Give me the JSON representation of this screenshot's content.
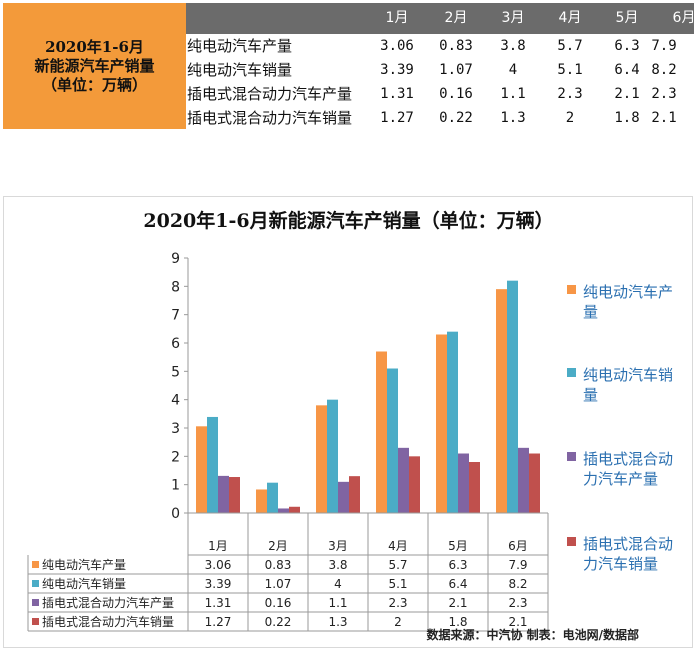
{
  "summary_table": {
    "title_lines": [
      "2020年1-6月",
      "新能源汽车产销量",
      "（单位：万辆）"
    ],
    "months": [
      "1月",
      "2月",
      "3月",
      "4月",
      "5月",
      "6月"
    ],
    "rows": [
      {
        "name": "纯电动汽车产量",
        "values": [
          "3.06",
          "0.83",
          "3.8",
          "5.7",
          "6.3",
          "7.9"
        ]
      },
      {
        "name": "纯电动汽车销量",
        "values": [
          "3.39",
          "1.07",
          "4",
          "5.1",
          "6.4",
          "8.2"
        ]
      },
      {
        "name": "插电式混合动力汽车产量",
        "values": [
          "1.31",
          "0.16",
          "1.1",
          "2.3",
          "2.1",
          "2.3"
        ]
      },
      {
        "name": "插电式混合动力汽车销量",
        "values": [
          "1.27",
          "0.22",
          "1.3",
          "2",
          "1.8",
          "2.1"
        ]
      }
    ],
    "header_color": "#6b6b6b",
    "title_cell_color": "#f39a3a"
  },
  "chart_data": {
    "type": "bar",
    "title": "2020年1-6月新能源汽车产销量（单位：万辆）",
    "categories": [
      "1月",
      "2月",
      "3月",
      "4月",
      "5月",
      "6月"
    ],
    "series": [
      {
        "name": "纯电动汽车产量",
        "color": "#f79646",
        "values": [
          3.06,
          0.83,
          3.8,
          5.7,
          6.3,
          7.9
        ],
        "labels": [
          "3.06",
          "0.83",
          "3.8",
          "5.7",
          "6.3",
          "7.9"
        ]
      },
      {
        "name": "纯电动汽车销量",
        "color": "#4bacc6",
        "values": [
          3.39,
          1.07,
          4,
          5.1,
          6.4,
          8.2
        ],
        "labels": [
          "3.39",
          "1.07",
          "4",
          "5.1",
          "6.4",
          "8.2"
        ]
      },
      {
        "name": "插电式混合动力汽车产量",
        "color": "#8064a2",
        "values": [
          1.31,
          0.16,
          1.1,
          2.3,
          2.1,
          2.3
        ],
        "labels": [
          "1.31",
          "0.16",
          "1.1",
          "2.3",
          "2.1",
          "2.3"
        ]
      },
      {
        "name": "插电式混合动力汽车销量",
        "color": "#c0504d",
        "values": [
          1.27,
          0.22,
          1.3,
          2,
          1.8,
          2.1
        ],
        "labels": [
          "1.27",
          "0.22",
          "1.3",
          "2",
          "1.8",
          "2.1"
        ]
      }
    ],
    "legend_lines": [
      [
        "纯电动汽车产",
        "量"
      ],
      [
        "纯电动汽车销",
        "量"
      ],
      [
        "插电式混合动",
        "力汽车产量"
      ],
      [
        "插电式混合动",
        "力汽车销量"
      ]
    ],
    "y_ticks": [
      "0",
      "1",
      "2",
      "3",
      "4",
      "5",
      "6",
      "7",
      "8",
      "9"
    ],
    "ylim": [
      0,
      9
    ],
    "grid": false,
    "data_table": true,
    "legend_position": "right"
  },
  "source_note": "数据来源：中汽协  制表：电池网/数据部"
}
